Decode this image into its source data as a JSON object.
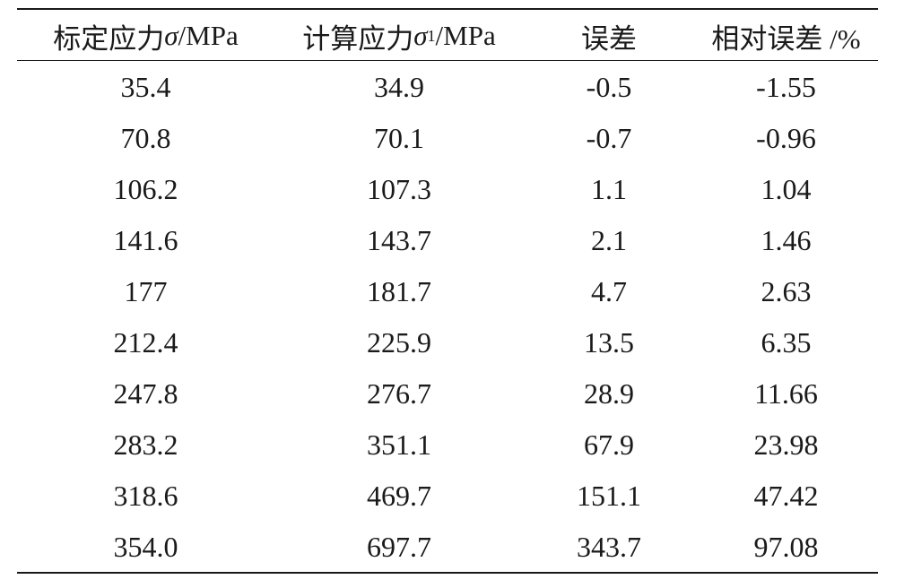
{
  "table": {
    "headers": {
      "col1": {
        "prefix": "标定应力 ",
        "symbol": "σ",
        "subscript": "",
        "suffix": "/MPa"
      },
      "col2": {
        "prefix": "计算应力 ",
        "symbol": "σ",
        "subscript": "1",
        "suffix": "/MPa"
      },
      "col3": {
        "text": "误差"
      },
      "col4": {
        "text": "相对误差 /%"
      }
    },
    "rows": [
      [
        "35.4",
        "34.9",
        "-0.5",
        "-1.55"
      ],
      [
        "70.8",
        "70.1",
        "-0.7",
        "-0.96"
      ],
      [
        "106.2",
        "107.3",
        "1.1",
        "1.04"
      ],
      [
        "141.6",
        "143.7",
        "2.1",
        "1.46"
      ],
      [
        "177",
        "181.7",
        "4.7",
        "2.63"
      ],
      [
        "212.4",
        "225.9",
        "13.5",
        "6.35"
      ],
      [
        "247.8",
        "276.7",
        "28.9",
        "11.66"
      ],
      [
        "283.2",
        "351.1",
        "67.9",
        "23.98"
      ],
      [
        "318.6",
        "469.7",
        "151.1",
        "47.42"
      ],
      [
        "354.0",
        "697.7",
        "343.7",
        "97.08"
      ]
    ]
  }
}
